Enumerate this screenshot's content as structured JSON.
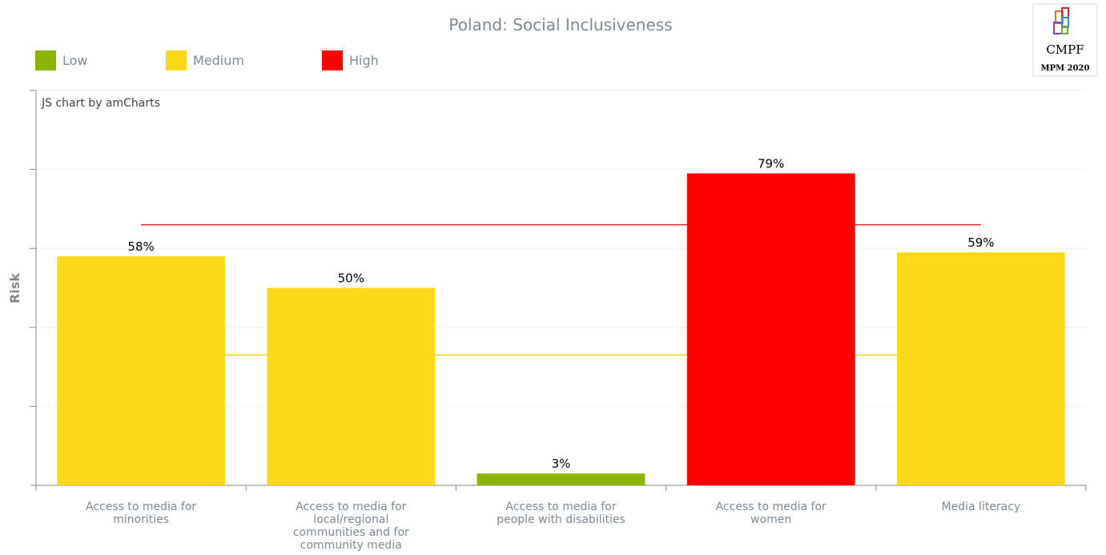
{
  "chart_data": {
    "type": "bar",
    "title": "Poland: Social Inclusiveness",
    "ylabel": "Risk",
    "credit": "JS chart by amCharts",
    "ylim": [
      0,
      100
    ],
    "grid": true,
    "legend_position": "top-left",
    "legend": [
      {
        "label": "Low",
        "color": "#8ab400"
      },
      {
        "label": "Medium",
        "color": "#fbd918"
      },
      {
        "label": "High",
        "color": "#ff0000"
      }
    ],
    "categories": [
      [
        "Access to media for",
        "minorities"
      ],
      [
        "Access to media for",
        "local/regional",
        "communities and for",
        "community media"
      ],
      [
        "Access to media for",
        "people with disabilities"
      ],
      [
        "Access to media for",
        "women"
      ],
      [
        "Media literacy"
      ]
    ],
    "values": [
      58,
      50,
      3,
      79,
      59
    ],
    "value_labels": [
      "58%",
      "50%",
      "3%",
      "79%",
      "59%"
    ],
    "bar_colors": [
      "#fbd918",
      "#fbd918",
      "#8ab400",
      "#ff0000",
      "#fbd918"
    ],
    "thresholds": [
      {
        "value": 66,
        "color": "#e0262a"
      },
      {
        "value": 33,
        "color": "#fbd918"
      }
    ]
  },
  "logo": {
    "name": "CMPF",
    "edition": "MPM 2020",
    "icon": "cmpf-logo-icon"
  }
}
